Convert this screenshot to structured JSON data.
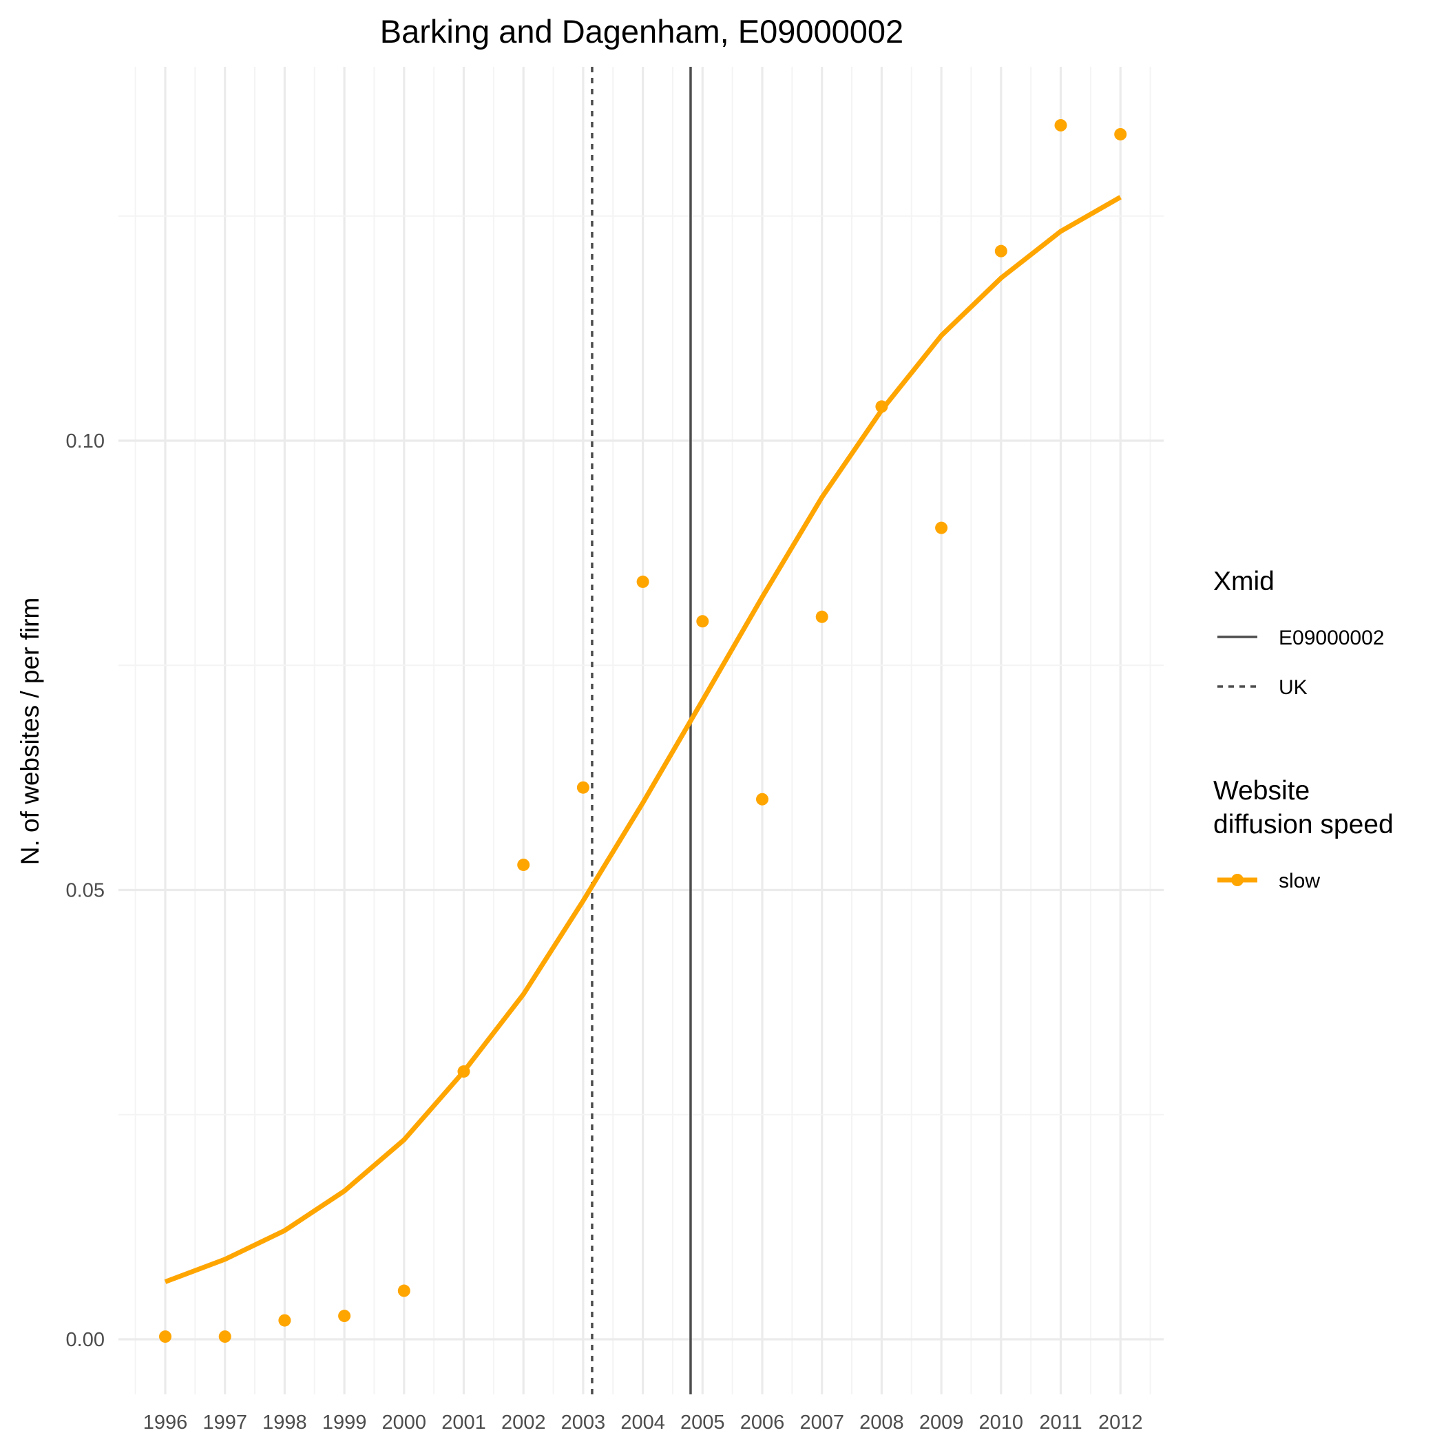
{
  "chart_data": {
    "type": "scatter",
    "title": "Barking and Dagenham, E09000002",
    "xlabel": "",
    "ylabel": "N. of websites / per firm",
    "x": [
      1996,
      1997,
      1998,
      1999,
      2000,
      2001,
      2002,
      2003,
      2004,
      2005,
      2006,
      2007,
      2008,
      2009,
      2010,
      2011,
      2012
    ],
    "x_tick_labels": [
      "1996",
      "1997",
      "1998",
      "1999",
      "2000",
      "2001",
      "2002",
      "2003",
      "2004",
      "2005",
      "2006",
      "2007",
      "2008",
      "2009",
      "2010",
      "2011",
      "2012"
    ],
    "y_ticks": [
      0.0,
      0.05,
      0.1
    ],
    "y_tick_labels": [
      "0.00",
      "0.05",
      "0.10"
    ],
    "ylim": [
      -0.0045,
      0.1415
    ],
    "xlim": [
      1995.5,
      2012.5
    ],
    "grid": true,
    "series": [
      {
        "name": "slow",
        "kind": "points",
        "color": "#FFA500",
        "values": [
          0.0003,
          0.0003,
          0.0021,
          0.0026,
          0.0054,
          0.0298,
          0.0528,
          0.0614,
          0.0843,
          0.0799,
          0.0601,
          0.0804,
          0.1038,
          0.0903,
          0.1211,
          0.1351,
          0.1341
        ]
      },
      {
        "name": "slow",
        "kind": "line",
        "color": "#FFA500",
        "values": [
          0.0064,
          0.0089,
          0.0121,
          0.0165,
          0.0222,
          0.0298,
          0.0384,
          0.0488,
          0.0597,
          0.0711,
          0.0826,
          0.0937,
          0.1034,
          0.1117,
          0.1181,
          0.1233,
          0.1271
        ]
      }
    ],
    "vlines": [
      {
        "name": "E09000002",
        "x": 2004.8,
        "style": "solid",
        "color": "#4d4d4d"
      },
      {
        "name": "UK",
        "x": 2003.15,
        "style": "dashed",
        "color": "#4d4d4d"
      }
    ],
    "legend_position": "right",
    "legends": [
      {
        "title": "Xmid",
        "items": [
          {
            "label": "E09000002",
            "style": "solid"
          },
          {
            "label": "UK",
            "style": "dashed"
          }
        ]
      },
      {
        "title_lines": [
          "Website",
          "diffusion speed"
        ],
        "items": [
          {
            "label": "slow",
            "style": "line-point",
            "color": "#FFA500"
          }
        ]
      }
    ]
  }
}
